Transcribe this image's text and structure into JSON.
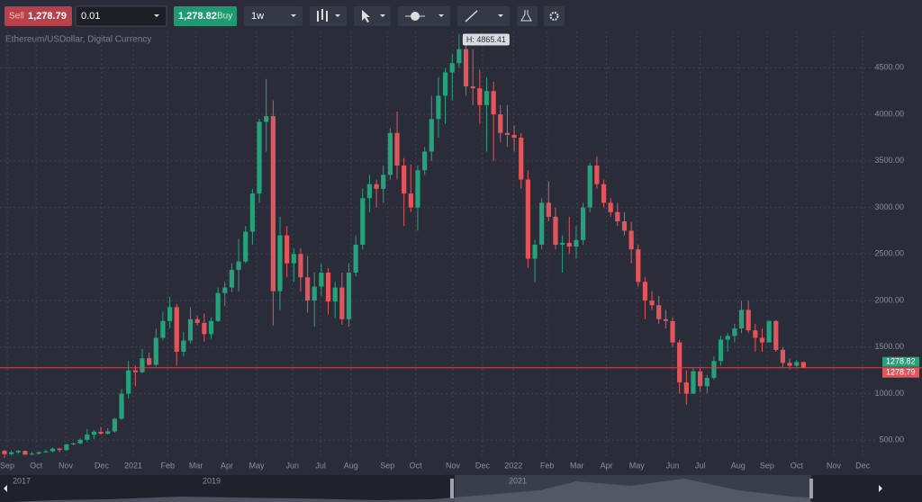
{
  "toolbar": {
    "sell_label": "Sell",
    "sell_price": "1,278.79",
    "lot": "0.01",
    "buy_price": "1,278.82",
    "buy_label": "Buy",
    "timeframe": "1w"
  },
  "chart_data": {
    "type": "candlestick",
    "subtitle": "Ethereum/USDollar, Digital Currency",
    "annotation": "H: 4865.41",
    "colors": {
      "up": "#26a27b",
      "down": "#e2565b",
      "price_line": "#c9474d"
    },
    "values": [
      [
        385,
        395,
        310,
        350
      ],
      [
        350,
        390,
        335,
        370
      ],
      [
        370,
        395,
        355,
        385
      ],
      [
        385,
        390,
        340,
        345
      ],
      [
        345,
        375,
        340,
        355
      ],
      [
        355,
        380,
        345,
        370
      ],
      [
        370,
        395,
        365,
        380
      ],
      [
        380,
        420,
        370,
        410
      ],
      [
        410,
        420,
        370,
        395
      ],
      [
        395,
        465,
        385,
        455
      ],
      [
        455,
        475,
        445,
        465
      ],
      [
        465,
        520,
        455,
        505
      ],
      [
        505,
        620,
        480,
        560
      ],
      [
        560,
        610,
        510,
        590
      ],
      [
        590,
        640,
        560,
        570
      ],
      [
        570,
        630,
        560,
        595
      ],
      [
        595,
        740,
        580,
        730
      ],
      [
        730,
        1050,
        720,
        1000
      ],
      [
        1000,
        1350,
        950,
        1250
      ],
      [
        1250,
        1300,
        1080,
        1230
      ],
      [
        1230,
        1480,
        1220,
        1380
      ],
      [
        1380,
        1440,
        1300,
        1310
      ],
      [
        1310,
        1700,
        1290,
        1600
      ],
      [
        1600,
        1880,
        1570,
        1780
      ],
      [
        1780,
        2040,
        1700,
        1930
      ],
      [
        1930,
        1960,
        1300,
        1450
      ],
      [
        1450,
        1660,
        1400,
        1570
      ],
      [
        1570,
        1930,
        1540,
        1800
      ],
      [
        1800,
        1840,
        1730,
        1760
      ],
      [
        1760,
        1860,
        1560,
        1640
      ],
      [
        1640,
        1820,
        1590,
        1780
      ],
      [
        1780,
        2140,
        1770,
        2080
      ],
      [
        2080,
        2200,
        1940,
        2140
      ],
      [
        2140,
        2400,
        2090,
        2330
      ],
      [
        2330,
        2660,
        2100,
        2420
      ],
      [
        2420,
        2800,
        2400,
        2740
      ],
      [
        2740,
        3200,
        2600,
        3150
      ],
      [
        3150,
        3950,
        3050,
        3920
      ],
      [
        3920,
        4380,
        3600,
        3980
      ],
      [
        3980,
        4150,
        1730,
        2100
      ],
      [
        2100,
        2900,
        1900,
        2700
      ],
      [
        2700,
        2800,
        2250,
        2400
      ],
      [
        2400,
        2560,
        2200,
        2500
      ],
      [
        2500,
        2560,
        2100,
        2250
      ],
      [
        2250,
        2480,
        1870,
        2000
      ],
      [
        2000,
        2300,
        1720,
        2150
      ],
      [
        2150,
        2400,
        2050,
        2300
      ],
      [
        2300,
        2350,
        1850,
        1990
      ],
      [
        1990,
        2200,
        1810,
        2140
      ],
      [
        2140,
        2300,
        1740,
        1800
      ],
      [
        1800,
        2400,
        1720,
        2300
      ],
      [
        2300,
        2700,
        2260,
        2600
      ],
      [
        2600,
        3200,
        2550,
        3100
      ],
      [
        3100,
        3350,
        2950,
        3250
      ],
      [
        3250,
        3300,
        3000,
        3200
      ],
      [
        3200,
        3450,
        3050,
        3350
      ],
      [
        3350,
        3850,
        3300,
        3800
      ],
      [
        3800,
        4030,
        3300,
        3450
      ],
      [
        3450,
        3530,
        2800,
        3150
      ],
      [
        3150,
        3460,
        2950,
        3000
      ],
      [
        3000,
        3450,
        2750,
        3400
      ],
      [
        3400,
        3650,
        3350,
        3600
      ],
      [
        3600,
        4200,
        3500,
        3950
      ],
      [
        3950,
        4400,
        3750,
        4200
      ],
      [
        4200,
        4500,
        3900,
        4450
      ],
      [
        4450,
        4650,
        4150,
        4550
      ],
      [
        4550,
        4865.41,
        4500,
        4700
      ],
      [
        4700,
        4800,
        4200,
        4300
      ],
      [
        4300,
        4700,
        4100,
        4280
      ],
      [
        4280,
        4480,
        3900,
        4100
      ],
      [
        4100,
        4400,
        3600,
        4250
      ],
      [
        4250,
        4350,
        3500,
        4000
      ],
      [
        4000,
        4100,
        3700,
        3800
      ],
      [
        3800,
        4100,
        3650,
        3780
      ],
      [
        3780,
        3880,
        3600,
        3750
      ],
      [
        3750,
        3800,
        3200,
        3300
      ],
      [
        3300,
        3400,
        2350,
        2450
      ],
      [
        2450,
        2650,
        2200,
        2600
      ],
      [
        2600,
        3100,
        2550,
        3050
      ],
      [
        3050,
        3280,
        2850,
        2900
      ],
      [
        2900,
        3000,
        2550,
        2600
      ],
      [
        2600,
        2700,
        2300,
        2620
      ],
      [
        2620,
        2900,
        2500,
        2580
      ],
      [
        2580,
        2800,
        2450,
        2650
      ],
      [
        2650,
        3050,
        2600,
        3000
      ],
      [
        3000,
        3480,
        2950,
        3450
      ],
      [
        3450,
        3550,
        3200,
        3250
      ],
      [
        3250,
        3300,
        3000,
        3050
      ],
      [
        3050,
        3100,
        2900,
        2950
      ],
      [
        2950,
        3050,
        2800,
        2850
      ],
      [
        2850,
        2950,
        2700,
        2750
      ],
      [
        2750,
        2850,
        2400,
        2550
      ],
      [
        2550,
        2600,
        2150,
        2200
      ],
      [
        2200,
        2250,
        1800,
        2000
      ],
      [
        2000,
        2100,
        1900,
        1950
      ],
      [
        1950,
        2050,
        1750,
        1800
      ],
      [
        1800,
        1900,
        1700,
        1780
      ],
      [
        1780,
        1820,
        1500,
        1550
      ],
      [
        1550,
        1580,
        1000,
        1120
      ],
      [
        1120,
        1250,
        880,
        1000
      ],
      [
        1000,
        1280,
        1000,
        1240
      ],
      [
        1240,
        1280,
        1020,
        1080
      ],
      [
        1080,
        1200,
        1000,
        1170
      ],
      [
        1170,
        1400,
        1150,
        1350
      ],
      [
        1350,
        1620,
        1300,
        1580
      ],
      [
        1580,
        1650,
        1450,
        1620
      ],
      [
        1620,
        1750,
        1550,
        1700
      ],
      [
        1700,
        2000,
        1650,
        1900
      ],
      [
        1900,
        2000,
        1650,
        1680
      ],
      [
        1680,
        1750,
        1450,
        1600
      ],
      [
        1600,
        1700,
        1450,
        1550
      ],
      [
        1550,
        1790,
        1550,
        1780
      ],
      [
        1780,
        1790,
        1450,
        1470
      ],
      [
        1470,
        1500,
        1280,
        1330
      ],
      [
        1330,
        1380,
        1260,
        1300
      ],
      [
        1300,
        1360,
        1280,
        1340
      ],
      [
        1340,
        1340,
        1270,
        1278.82
      ]
    ],
    "xlim": [
      -0.65,
      126.8
    ],
    "xticks": [
      {
        "value": 0.4,
        "label": "Sep"
      },
      {
        "value": 4.6,
        "label": "Oct"
      },
      {
        "value": 8.9,
        "label": "Nov"
      },
      {
        "value": 14.1,
        "label": "Dec"
      },
      {
        "value": 18.7,
        "label": "2021"
      },
      {
        "value": 23.7,
        "label": "Feb"
      },
      {
        "value": 27.8,
        "label": "Mar"
      },
      {
        "value": 32.3,
        "label": "Apr"
      },
      {
        "value": 36.6,
        "label": "May"
      },
      {
        "value": 41.8,
        "label": "Jun"
      },
      {
        "value": 45.9,
        "label": "Jul"
      },
      {
        "value": 50.3,
        "label": "Aug"
      },
      {
        "value": 55.6,
        "label": "Sep"
      },
      {
        "value": 59.7,
        "label": "Oct"
      },
      {
        "value": 65.1,
        "label": "Nov"
      },
      {
        "value": 69.4,
        "label": "Dec"
      },
      {
        "value": 73.9,
        "label": "2022"
      },
      {
        "value": 78.8,
        "label": "Feb"
      },
      {
        "value": 83.1,
        "label": "Mar"
      },
      {
        "value": 87.4,
        "label": "Apr"
      },
      {
        "value": 91.8,
        "label": "May"
      },
      {
        "value": 97,
        "label": "Jun"
      },
      {
        "value": 101,
        "label": "Jul"
      },
      {
        "value": 106.5,
        "label": "Aug"
      },
      {
        "value": 110.7,
        "label": "Sep"
      },
      {
        "value": 115,
        "label": "Oct"
      },
      {
        "value": 120.4,
        "label": "Nov"
      },
      {
        "value": 124.6,
        "label": "Dec"
      }
    ],
    "ylim": [
      300,
      4890
    ],
    "yticks": [
      {
        "value": 500,
        "label": "500.00"
      },
      {
        "value": 1000,
        "label": "1000.00"
      },
      {
        "value": 1500,
        "label": "1500.00"
      },
      {
        "value": 2000,
        "label": "2000.00"
      },
      {
        "value": 2500,
        "label": "2500.00"
      },
      {
        "value": 3000,
        "label": "3000.00"
      },
      {
        "value": 3500,
        "label": "3500.00"
      },
      {
        "value": 4000,
        "label": "4000.00"
      },
      {
        "value": 4500,
        "label": "4500.00"
      }
    ],
    "grid": true,
    "ask": 1278.82,
    "bid": 1278.79
  },
  "navigator": {
    "labels": [
      "2017",
      "2019",
      "2021"
    ]
  }
}
